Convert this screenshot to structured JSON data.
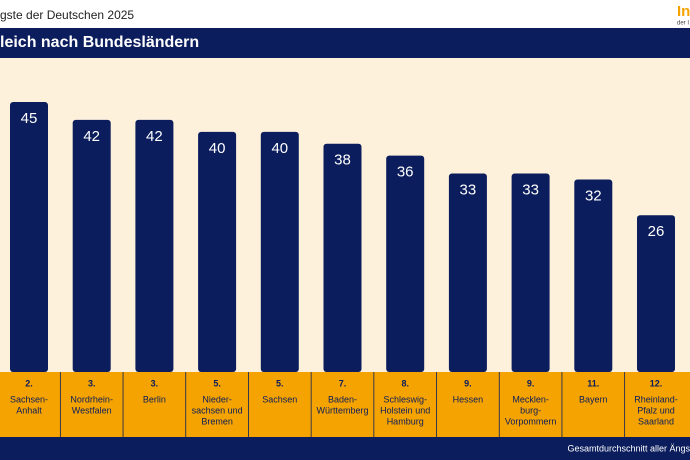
{
  "chart_data": {
    "type": "bar",
    "title": "gste der Deutschen 2025",
    "subtitle": "leich nach Bundesländern",
    "logo": "In",
    "logo_sub": "der I",
    "footer": "Gesamtdurchschnitt aller Ängs",
    "ranks": [
      "2.",
      "3.",
      "3.",
      "5.",
      "5.",
      "7.",
      "8.",
      "9.",
      "9.",
      "11.",
      "12."
    ],
    "categories": [
      [
        "Sachsen-",
        "Anhalt"
      ],
      [
        "Nordrhein-",
        "Westfalen"
      ],
      [
        "Berlin"
      ],
      [
        "Nieder-",
        "sachsen und",
        "Bremen"
      ],
      [
        "Sachsen"
      ],
      [
        "Baden-",
        "Württemberg"
      ],
      [
        "Schleswig-",
        "Holstein und",
        "Hamburg"
      ],
      [
        "Hessen"
      ],
      [
        "Mecklen-",
        "burg-",
        "Vorpommern"
      ],
      [
        "Bayern"
      ],
      [
        "Rheinland-",
        "Pfalz und",
        "Saarland"
      ]
    ],
    "values": [
      45,
      42,
      42,
      40,
      40,
      38,
      36,
      33,
      33,
      32,
      26
    ],
    "color": "#0b1d5c",
    "ylim": [
      0,
      52.4
    ]
  }
}
